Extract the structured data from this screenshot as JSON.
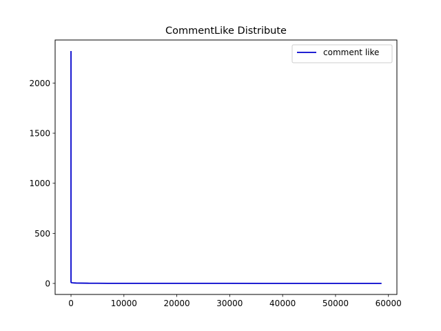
{
  "chart_data": {
    "type": "line",
    "title": "CommentLike Distribute",
    "xlabel": "",
    "ylabel": "",
    "xlim": [
      -3000,
      61600
    ],
    "ylim": [
      -110,
      2430
    ],
    "xticks": [
      0,
      10000,
      20000,
      30000,
      40000,
      50000,
      60000
    ],
    "yticks": [
      0,
      500,
      1000,
      1500,
      2000
    ],
    "grid": false,
    "legend": {
      "position": "top-right"
    },
    "series": [
      {
        "name": "comment like",
        "color": "#0000cc",
        "x": [
          0,
          1,
          2,
          3,
          5,
          8,
          12,
          20,
          40,
          80,
          150,
          300,
          600,
          1000,
          2000,
          3500,
          5000,
          7000,
          10000,
          20000,
          30000,
          40000,
          50000,
          58700
        ],
        "y": [
          2320,
          120,
          40,
          25,
          18,
          14,
          12,
          10,
          9,
          8,
          7,
          6,
          5,
          4,
          3,
          2,
          2,
          1,
          1,
          1,
          1,
          0,
          0,
          0
        ]
      }
    ]
  }
}
